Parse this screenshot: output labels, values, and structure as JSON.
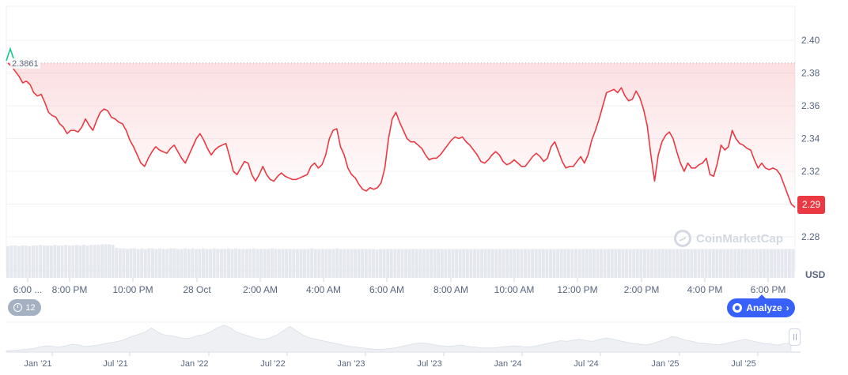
{
  "chart_data": {
    "type": "line",
    "title": "",
    "unit": "USD",
    "ylim": [
      2.27,
      2.41
    ],
    "y_ticks": [
      "2.40",
      "2.38",
      "2.36",
      "2.34",
      "2.32",
      "2.28"
    ],
    "x_ticks": [
      "6:00 ...",
      "8:00 PM",
      "10:00 PM",
      "28 Oct",
      "2:00 AM",
      "4:00 AM",
      "6:00 AM",
      "8:00 AM",
      "10:00 AM",
      "12:00 PM",
      "2:00 PM",
      "4:00 PM",
      "6:00 PM"
    ],
    "reference_value": "2.3861",
    "current_price": "2.29",
    "line_color": "#ea3943",
    "start_color": "#16c784",
    "grid": true,
    "series": [
      {
        "values": [
          2.3861,
          2.384,
          2.381,
          2.378,
          2.374,
          2.375,
          2.373,
          2.368,
          2.366,
          2.367,
          2.362,
          2.356,
          2.354,
          2.353,
          2.349,
          2.347,
          2.343,
          2.345,
          2.345,
          2.344,
          2.347,
          2.352,
          2.348,
          2.345,
          2.351,
          2.356,
          2.358,
          2.357,
          2.353,
          2.352,
          2.35,
          2.349,
          2.345,
          2.339,
          2.335,
          2.33,
          2.325,
          2.323,
          2.328,
          2.332,
          2.335,
          2.333,
          2.332,
          2.331,
          2.334,
          2.336,
          2.332,
          2.328,
          2.325,
          2.33,
          2.335,
          2.34,
          2.343,
          2.339,
          2.334,
          2.33,
          2.333,
          2.335,
          2.336,
          2.337,
          2.329,
          2.32,
          2.318,
          2.322,
          2.326,
          2.325,
          2.318,
          2.314,
          2.318,
          2.323,
          2.318,
          2.315,
          2.314,
          2.317,
          2.319,
          2.317,
          2.316,
          2.315,
          2.315,
          2.316,
          2.317,
          2.318,
          2.323,
          2.325,
          2.322,
          2.324,
          2.33,
          2.34,
          2.345,
          2.346,
          2.335,
          2.33,
          2.322,
          2.318,
          2.316,
          2.312,
          2.309,
          2.308,
          2.31,
          2.309,
          2.31,
          2.313,
          2.322,
          2.34,
          2.352,
          2.356,
          2.35,
          2.345,
          2.34,
          2.338,
          2.338,
          2.336,
          2.334,
          2.33,
          2.327,
          2.328,
          2.328,
          2.33,
          2.333,
          2.336,
          2.339,
          2.341,
          2.34,
          2.341,
          2.338,
          2.336,
          2.333,
          2.33,
          2.326,
          2.325,
          2.327,
          2.33,
          2.332,
          2.33,
          2.326,
          2.324,
          2.325,
          2.327,
          2.325,
          2.323,
          2.323,
          2.326,
          2.329,
          2.331,
          2.329,
          2.326,
          2.328,
          2.335,
          2.338,
          2.332,
          2.326,
          2.322,
          2.323,
          2.323,
          2.326,
          2.329,
          2.325,
          2.33,
          2.339,
          2.345,
          2.352,
          2.36,
          2.368,
          2.369,
          2.37,
          2.368,
          2.371,
          2.366,
          2.363,
          2.364,
          2.369,
          2.365,
          2.358,
          2.348,
          2.33,
          2.314,
          2.33,
          2.338,
          2.342,
          2.344,
          2.34,
          2.332,
          2.325,
          2.32,
          2.325,
          2.322,
          2.322,
          2.324,
          2.325,
          2.328,
          2.318,
          2.317,
          2.325,
          2.336,
          2.333,
          2.335,
          2.345,
          2.34,
          2.337,
          2.336,
          2.334,
          2.333,
          2.327,
          2.322,
          2.325,
          2.322,
          2.321,
          2.322,
          2.321,
          2.318,
          2.312,
          2.306,
          2.3,
          2.298
        ]
      }
    ],
    "volume": {
      "values": [
        0.55,
        0.56,
        0.56,
        0.55,
        0.56,
        0.56,
        0.55,
        0.56,
        0.56,
        0.57,
        0.56,
        0.56,
        0.56,
        0.57,
        0.56,
        0.56,
        0.57,
        0.56,
        0.56,
        0.57,
        0.56,
        0.57,
        0.56,
        0.57,
        0.57,
        0.57,
        0.58,
        0.58,
        0.58,
        0.57,
        0.52,
        0.51,
        0.51,
        0.5,
        0.51,
        0.51,
        0.5,
        0.51,
        0.5,
        0.51,
        0.51,
        0.5,
        0.51,
        0.5,
        0.5,
        0.51,
        0.51,
        0.5,
        0.5,
        0.51,
        0.5,
        0.51,
        0.5,
        0.5,
        0.51,
        0.5,
        0.5,
        0.51,
        0.5,
        0.5,
        0.5,
        0.51,
        0.5,
        0.51,
        0.5,
        0.5,
        0.5,
        0.5,
        0.51,
        0.5,
        0.5,
        0.5,
        0.5,
        0.51,
        0.5,
        0.5,
        0.5,
        0.5,
        0.5,
        0.5,
        0.5,
        0.5,
        0.5,
        0.5,
        0.51,
        0.5,
        0.5,
        0.5,
        0.5,
        0.5,
        0.5,
        0.51,
        0.5,
        0.5,
        0.5,
        0.5,
        0.5,
        0.5,
        0.5,
        0.5,
        0.5,
        0.5,
        0.49,
        0.5,
        0.5,
        0.5,
        0.5,
        0.5,
        0.5,
        0.5,
        0.5,
        0.5,
        0.5,
        0.5,
        0.5,
        0.5,
        0.5,
        0.5,
        0.5,
        0.5,
        0.5,
        0.5,
        0.5,
        0.5,
        0.5,
        0.5,
        0.5,
        0.5,
        0.5,
        0.5,
        0.5,
        0.5,
        0.5,
        0.5,
        0.5,
        0.5,
        0.5,
        0.5,
        0.5,
        0.5,
        0.5,
        0.5,
        0.5,
        0.5,
        0.5,
        0.5,
        0.5,
        0.5,
        0.5,
        0.5,
        0.5,
        0.5,
        0.5,
        0.5,
        0.5,
        0.5,
        0.5,
        0.5,
        0.5,
        0.5,
        0.5,
        0.5,
        0.5,
        0.5,
        0.5,
        0.5,
        0.5,
        0.5,
        0.5,
        0.5,
        0.5,
        0.5,
        0.5,
        0.5,
        0.5,
        0.5,
        0.5,
        0.5,
        0.5,
        0.5,
        0.5,
        0.5,
        0.5,
        0.5,
        0.5,
        0.5,
        0.5,
        0.5,
        0.5,
        0.5,
        0.5,
        0.5,
        0.5,
        0.5,
        0.5,
        0.5,
        0.5,
        0.5,
        0.5,
        0.5,
        0.5,
        0.5,
        0.5,
        0.5,
        0.5,
        0.5,
        0.5,
        0.5,
        0.5,
        0.5,
        0.5,
        0.5,
        0.5,
        0.5,
        0.5,
        0.5,
        0.5,
        0.5
      ]
    },
    "navigator": {
      "x_ticks": [
        "Jan '21",
        "Jul '21",
        "Jan '22",
        "Jul '22",
        "Jan '23",
        "Jul '23",
        "Jan '24",
        "Jul '24",
        "Jan '25",
        "Jul '25"
      ],
      "values": [
        0.05,
        0.06,
        0.08,
        0.1,
        0.12,
        0.18,
        0.22,
        0.2,
        0.18,
        0.22,
        0.28,
        0.25,
        0.2,
        0.22,
        0.25,
        0.3,
        0.34,
        0.38,
        0.45,
        0.55,
        0.62,
        0.7,
        0.85,
        0.7,
        0.6,
        0.58,
        0.52,
        0.48,
        0.5,
        0.58,
        0.62,
        0.72,
        0.85,
        0.95,
        0.85,
        0.7,
        0.62,
        0.55,
        0.48,
        0.45,
        0.5,
        0.6,
        0.75,
        0.9,
        0.75,
        0.6,
        0.5,
        0.45,
        0.4,
        0.35,
        0.3,
        0.25,
        0.2,
        0.18,
        0.15,
        0.12,
        0.1,
        0.1,
        0.12,
        0.15,
        0.2,
        0.25,
        0.3,
        0.32,
        0.3,
        0.25,
        0.22,
        0.2,
        0.22,
        0.25,
        0.2,
        0.18,
        0.15,
        0.14,
        0.15,
        0.18,
        0.2,
        0.22,
        0.2,
        0.18,
        0.2,
        0.25,
        0.3,
        0.35,
        0.4,
        0.38,
        0.42,
        0.45,
        0.4,
        0.38,
        0.45,
        0.5,
        0.45,
        0.4,
        0.35,
        0.3,
        0.28,
        0.25,
        0.3,
        0.38,
        0.45,
        0.55,
        0.5,
        0.42,
        0.38,
        0.32,
        0.3,
        0.28,
        0.25,
        0.3,
        0.35,
        0.4,
        0.45,
        0.4,
        0.35,
        0.3,
        0.28,
        0.25,
        0.3,
        0.32
      ]
    }
  },
  "ui": {
    "interval_label": "12",
    "analyze_label": "Analyze",
    "watermark_text": "CoinMarketCap",
    "unit_label": "USD"
  }
}
